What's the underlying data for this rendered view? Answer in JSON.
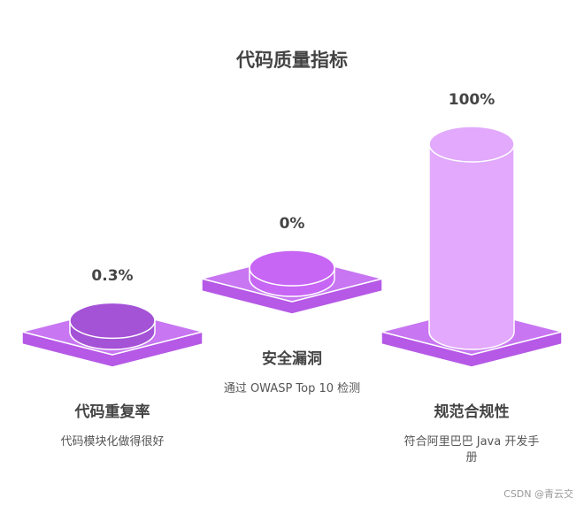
{
  "chart_data": {
    "type": "cylinder",
    "title": "代码质量指标",
    "categories": [
      "代码重复率",
      "安全漏洞",
      "规范合规性"
    ],
    "values": [
      0.3,
      0,
      100
    ],
    "value_labels": [
      "0.3%",
      "0%",
      "100%"
    ],
    "descriptions": [
      "代码模块化做得很好",
      "通过 OWASP Top 10 检测",
      "符合阿里巴巴 Java 开发手册"
    ],
    "colors": [
      "#a452d6",
      "#c766f5",
      "#e2a9fc"
    ],
    "watermark": "CSDN @青云交"
  }
}
